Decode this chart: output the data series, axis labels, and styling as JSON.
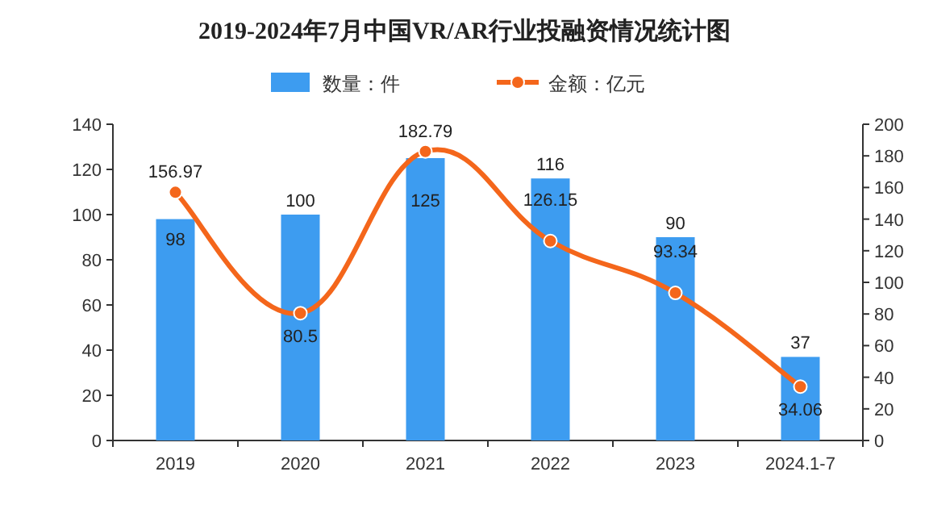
{
  "chart_data": {
    "type": "bar",
    "title": "2019-2024年7月中国VR/AR行业投融资情况统计图",
    "categories": [
      "2019",
      "2020",
      "2021",
      "2022",
      "2023",
      "2024.1-7"
    ],
    "series": [
      {
        "name": "数量：件",
        "color": "#3d9cf0",
        "values": [
          98,
          100,
          125,
          116,
          90,
          37
        ]
      },
      {
        "name": "金额：亿元",
        "type": "line",
        "axis": "y2",
        "color": "#f4661b",
        "values": [
          156.97,
          80.5,
          182.79,
          126.15,
          93.34,
          34.06
        ]
      }
    ],
    "ylim": [
      0,
      140
    ],
    "yticks": [
      0,
      20,
      40,
      60,
      80,
      100,
      120,
      140
    ],
    "y2lim": [
      0,
      200
    ],
    "y2ticks": [
      0,
      20,
      40,
      60,
      80,
      100,
      120,
      140,
      160,
      180,
      200
    ],
    "data_labels": true,
    "legend": "top",
    "marker": "circle",
    "grid": false
  }
}
